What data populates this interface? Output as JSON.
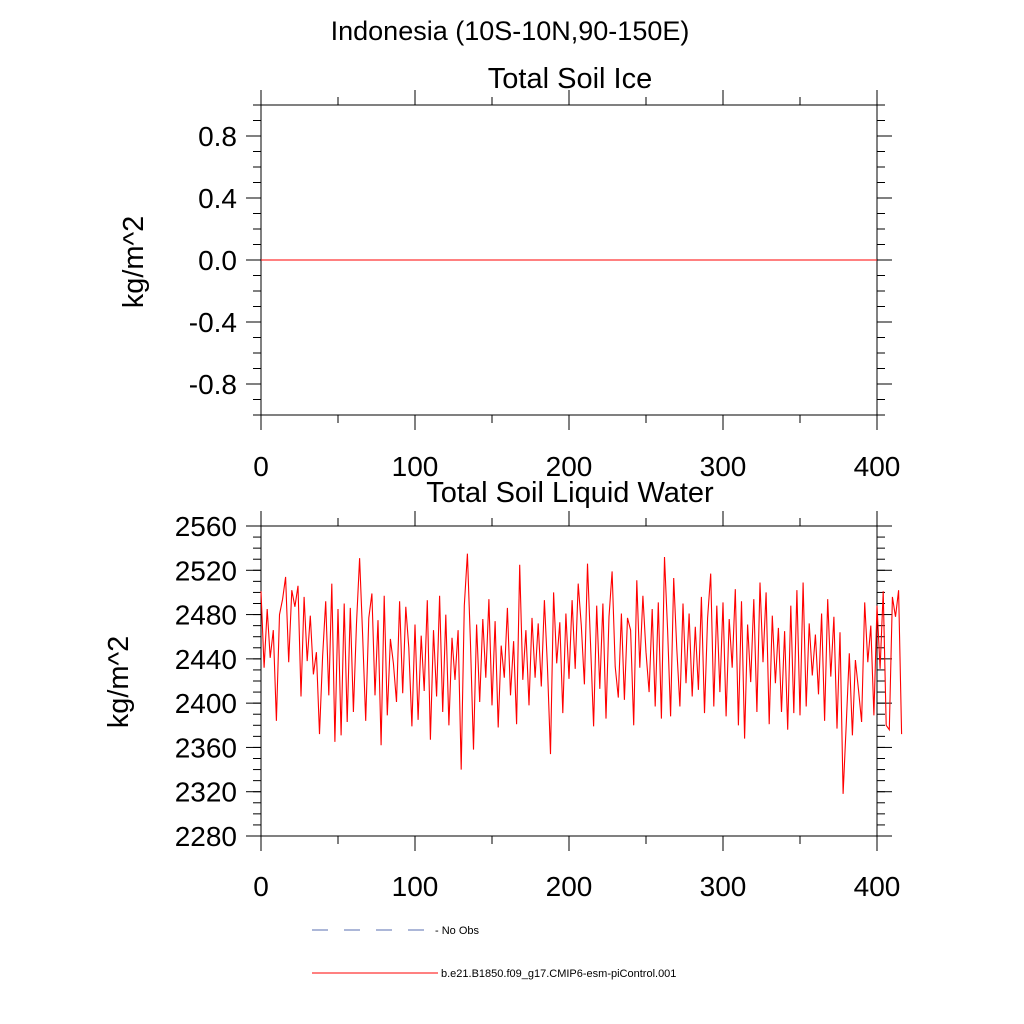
{
  "title": "Indonesia (10S-10N,90-150E)",
  "chart_data": [
    {
      "type": "line",
      "title": "Total Soil Ice",
      "ylabel": "kg/m^2",
      "xlabel": "",
      "xlim": [
        0,
        400
      ],
      "ylim": [
        -1.0,
        1.0
      ],
      "xticks": [
        0,
        100,
        200,
        300,
        400
      ],
      "yticks": [
        -0.8,
        -0.4,
        0.0,
        0.4,
        0.8
      ],
      "ytick_labels": [
        "-0.8",
        "-0.4",
        "0.0",
        "0.4",
        "0.8"
      ],
      "series": [
        {
          "name": "b.e21.B1850.f09_g17.CMIP6-esm-piControl.001",
          "color": "#ff0000",
          "x": [
            0,
            400
          ],
          "y": [
            0.0,
            0.0
          ]
        }
      ]
    },
    {
      "type": "line",
      "title": "Total Soil Liquid Water",
      "ylabel": "kg/m^2",
      "xlabel": "",
      "xlim": [
        0,
        400
      ],
      "ylim": [
        2280,
        2560
      ],
      "xticks": [
        0,
        100,
        200,
        300,
        400
      ],
      "yticks": [
        2280,
        2320,
        2360,
        2400,
        2440,
        2480,
        2520,
        2560
      ],
      "ytick_labels": [
        "2280",
        "2320",
        "2360",
        "2400",
        "2440",
        "2480",
        "2520",
        "2560"
      ],
      "series": [
        {
          "name": "b.e21.B1850.f09_g17.CMIP6-esm-piControl.001",
          "color": "#ff0000",
          "x0": 0,
          "dx": 2,
          "y": [
            2501,
            2432,
            2485,
            2441,
            2466,
            2384,
            2480,
            2494,
            2514,
            2437,
            2502,
            2487,
            2506,
            2406,
            2496,
            2438,
            2479,
            2426,
            2446,
            2372,
            2442,
            2492,
            2407,
            2508,
            2365,
            2485,
            2371,
            2490,
            2383,
            2486,
            2392,
            2472,
            2531,
            2462,
            2384,
            2477,
            2499,
            2407,
            2475,
            2362,
            2497,
            2389,
            2458,
            2436,
            2401,
            2492,
            2409,
            2487,
            2450,
            2379,
            2471,
            2385,
            2461,
            2411,
            2493,
            2367,
            2466,
            2406,
            2497,
            2392,
            2480,
            2380,
            2459,
            2421,
            2466,
            2340,
            2488,
            2535,
            2456,
            2358,
            2471,
            2401,
            2476,
            2423,
            2494,
            2398,
            2474,
            2378,
            2452,
            2423,
            2486,
            2407,
            2456,
            2381,
            2525,
            2421,
            2466,
            2398,
            2477,
            2423,
            2472,
            2415,
            2493,
            2434,
            2354,
            2500,
            2436,
            2473,
            2391,
            2481,
            2422,
            2493,
            2431,
            2508,
            2470,
            2417,
            2526,
            2452,
            2379,
            2488,
            2413,
            2490,
            2386,
            2478,
            2519,
            2433,
            2405,
            2481,
            2403,
            2477,
            2466,
            2380,
            2511,
            2432,
            2497,
            2446,
            2410,
            2485,
            2397,
            2491,
            2386,
            2532,
            2466,
            2388,
            2513,
            2449,
            2397,
            2490,
            2418,
            2481,
            2406,
            2469,
            2412,
            2496,
            2391,
            2477,
            2517,
            2397,
            2488,
            2410,
            2491,
            2388,
            2476,
            2432,
            2503,
            2380,
            2492,
            2368,
            2471,
            2419,
            2494,
            2392,
            2509,
            2437,
            2500,
            2381,
            2479,
            2418,
            2468,
            2392,
            2465,
            2376,
            2488,
            2391,
            2502,
            2389,
            2509,
            2397,
            2472,
            2425,
            2462,
            2408,
            2481,
            2384,
            2494,
            2424,
            2478,
            2377,
            2464,
            2318,
            2380,
            2445,
            2371,
            2439,
            2412,
            2383,
            2491,
            2437,
            2470,
            2389,
            2488,
            2431,
            2501,
            2380,
            2376,
            2496,
            2478,
            2502,
            2372
          ]
        }
      ]
    }
  ],
  "legend": [
    {
      "label": "No Obs",
      "style": "dashed",
      "color": "#5a6fb0"
    },
    {
      "label": "b.e21.B1850.f09_g17.CMIP6-esm-piControl.001",
      "style": "solid",
      "color": "#ff0000"
    }
  ]
}
